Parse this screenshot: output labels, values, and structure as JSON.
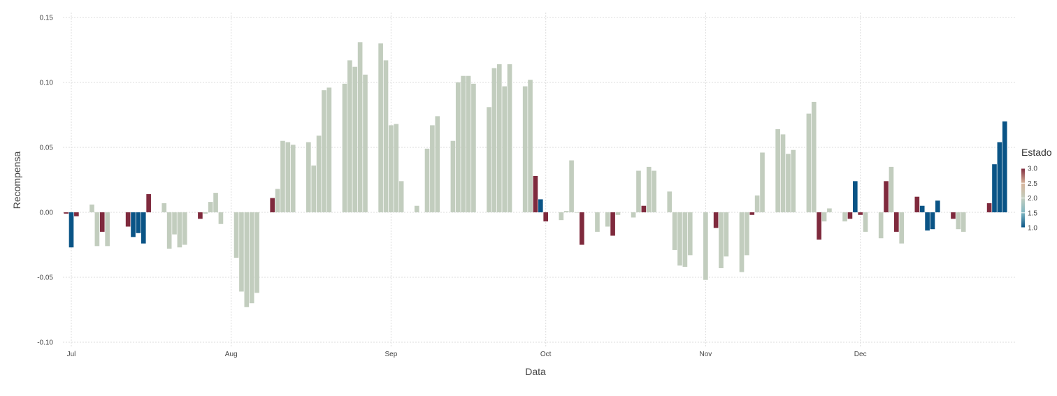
{
  "chart_data": {
    "type": "bar",
    "xlabel": "Data",
    "ylabel": "Recompensa",
    "ylim": [
      -0.1,
      0.15
    ],
    "y_ticks": [
      {
        "value": 0.15,
        "label": "0.15"
      },
      {
        "value": 0.1,
        "label": "0.10"
      },
      {
        "value": 0.05,
        "label": "0.05"
      },
      {
        "value": 0.0,
        "label": "0.00"
      },
      {
        "value": -0.05,
        "label": "-0.05"
      },
      {
        "value": -0.1,
        "label": "-0.10"
      }
    ],
    "x_ticks": [
      {
        "date": "2023-07-01",
        "label": "Jul"
      },
      {
        "date": "2023-08-01",
        "label": "Aug"
      },
      {
        "date": "2023-09-01",
        "label": "Sep"
      },
      {
        "date": "2023-10-01",
        "label": "Oct"
      },
      {
        "date": "2023-11-01",
        "label": "Nov"
      },
      {
        "date": "2023-12-01",
        "label": "Dec"
      }
    ],
    "xlim": [
      "2023-07-01",
      "2023-12-31"
    ],
    "grid": true,
    "legend": {
      "title": "Estado",
      "position": "right",
      "range": [
        1.0,
        3.0
      ],
      "ticks": [
        "3.0",
        "2.5",
        "2.0",
        "1.5",
        "1.0"
      ],
      "colors": {
        "1": "#0a5486",
        "2": "#c2cdbe",
        "3": "#7f2a3d"
      }
    },
    "points": [
      {
        "x": "2023-06-30",
        "y": -0.001,
        "state": 3
      },
      {
        "x": "2023-07-01",
        "y": -0.027,
        "state": 1
      },
      {
        "x": "2023-07-02",
        "y": -0.003,
        "state": 3
      },
      {
        "x": "2023-07-05",
        "y": 0.006,
        "state": 2
      },
      {
        "x": "2023-07-06",
        "y": -0.026,
        "state": 2
      },
      {
        "x": "2023-07-07",
        "y": -0.015,
        "state": 3
      },
      {
        "x": "2023-07-08",
        "y": -0.026,
        "state": 2
      },
      {
        "x": "2023-07-12",
        "y": -0.011,
        "state": 3
      },
      {
        "x": "2023-07-13",
        "y": -0.019,
        "state": 1
      },
      {
        "x": "2023-07-14",
        "y": -0.016,
        "state": 1
      },
      {
        "x": "2023-07-15",
        "y": -0.024,
        "state": 1
      },
      {
        "x": "2023-07-16",
        "y": 0.014,
        "state": 3
      },
      {
        "x": "2023-07-19",
        "y": 0.007,
        "state": 2
      },
      {
        "x": "2023-07-20",
        "y": -0.028,
        "state": 2
      },
      {
        "x": "2023-07-21",
        "y": -0.017,
        "state": 2
      },
      {
        "x": "2023-07-22",
        "y": -0.027,
        "state": 2
      },
      {
        "x": "2023-07-23",
        "y": -0.025,
        "state": 2
      },
      {
        "x": "2023-07-26",
        "y": -0.005,
        "state": 3
      },
      {
        "x": "2023-07-27",
        "y": -0.001,
        "state": 2
      },
      {
        "x": "2023-07-28",
        "y": 0.008,
        "state": 2
      },
      {
        "x": "2023-07-29",
        "y": 0.015,
        "state": 2
      },
      {
        "x": "2023-07-30",
        "y": -0.009,
        "state": 2
      },
      {
        "x": "2023-08-02",
        "y": -0.035,
        "state": 2
      },
      {
        "x": "2023-08-03",
        "y": -0.061,
        "state": 2
      },
      {
        "x": "2023-08-04",
        "y": -0.073,
        "state": 2
      },
      {
        "x": "2023-08-05",
        "y": -0.07,
        "state": 2
      },
      {
        "x": "2023-08-06",
        "y": -0.062,
        "state": 2
      },
      {
        "x": "2023-08-09",
        "y": 0.011,
        "state": 3
      },
      {
        "x": "2023-08-10",
        "y": 0.018,
        "state": 2
      },
      {
        "x": "2023-08-11",
        "y": 0.055,
        "state": 2
      },
      {
        "x": "2023-08-12",
        "y": 0.054,
        "state": 2
      },
      {
        "x": "2023-08-13",
        "y": 0.052,
        "state": 2
      },
      {
        "x": "2023-08-16",
        "y": 0.054,
        "state": 2
      },
      {
        "x": "2023-08-17",
        "y": 0.036,
        "state": 2
      },
      {
        "x": "2023-08-18",
        "y": 0.059,
        "state": 2
      },
      {
        "x": "2023-08-19",
        "y": 0.094,
        "state": 2
      },
      {
        "x": "2023-08-20",
        "y": 0.096,
        "state": 2
      },
      {
        "x": "2023-08-23",
        "y": 0.099,
        "state": 2
      },
      {
        "x": "2023-08-24",
        "y": 0.117,
        "state": 2
      },
      {
        "x": "2023-08-25",
        "y": 0.112,
        "state": 2
      },
      {
        "x": "2023-08-26",
        "y": 0.131,
        "state": 2
      },
      {
        "x": "2023-08-27",
        "y": 0.106,
        "state": 2
      },
      {
        "x": "2023-08-30",
        "y": 0.13,
        "state": 2
      },
      {
        "x": "2023-08-31",
        "y": 0.117,
        "state": 2
      },
      {
        "x": "2023-09-01",
        "y": 0.067,
        "state": 2
      },
      {
        "x": "2023-09-02",
        "y": 0.068,
        "state": 2
      },
      {
        "x": "2023-09-03",
        "y": 0.024,
        "state": 2
      },
      {
        "x": "2023-09-06",
        "y": 0.005,
        "state": 2
      },
      {
        "x": "2023-09-08",
        "y": 0.049,
        "state": 2
      },
      {
        "x": "2023-09-09",
        "y": 0.067,
        "state": 2
      },
      {
        "x": "2023-09-10",
        "y": 0.074,
        "state": 2
      },
      {
        "x": "2023-09-13",
        "y": 0.055,
        "state": 2
      },
      {
        "x": "2023-09-14",
        "y": 0.1,
        "state": 2
      },
      {
        "x": "2023-09-15",
        "y": 0.105,
        "state": 2
      },
      {
        "x": "2023-09-16",
        "y": 0.105,
        "state": 2
      },
      {
        "x": "2023-09-17",
        "y": 0.099,
        "state": 2
      },
      {
        "x": "2023-09-20",
        "y": 0.081,
        "state": 2
      },
      {
        "x": "2023-09-21",
        "y": 0.111,
        "state": 2
      },
      {
        "x": "2023-09-22",
        "y": 0.114,
        "state": 2
      },
      {
        "x": "2023-09-23",
        "y": 0.097,
        "state": 2
      },
      {
        "x": "2023-09-24",
        "y": 0.114,
        "state": 2
      },
      {
        "x": "2023-09-27",
        "y": 0.097,
        "state": 2
      },
      {
        "x": "2023-09-28",
        "y": 0.102,
        "state": 2
      },
      {
        "x": "2023-09-29",
        "y": 0.028,
        "state": 3
      },
      {
        "x": "2023-09-30",
        "y": 0.01,
        "state": 1
      },
      {
        "x": "2023-10-01",
        "y": -0.007,
        "state": 3
      },
      {
        "x": "2023-10-04",
        "y": -0.006,
        "state": 2
      },
      {
        "x": "2023-10-05",
        "y": 0.001,
        "state": 2
      },
      {
        "x": "2023-10-06",
        "y": 0.04,
        "state": 2
      },
      {
        "x": "2023-10-07",
        "y": 0.0,
        "state": 2
      },
      {
        "x": "2023-10-08",
        "y": -0.025,
        "state": 3
      },
      {
        "x": "2023-10-11",
        "y": -0.015,
        "state": 2
      },
      {
        "x": "2023-10-13",
        "y": -0.011,
        "state": 2
      },
      {
        "x": "2023-10-14",
        "y": -0.018,
        "state": 3
      },
      {
        "x": "2023-10-15",
        "y": -0.002,
        "state": 2
      },
      {
        "x": "2023-10-18",
        "y": -0.004,
        "state": 2
      },
      {
        "x": "2023-10-19",
        "y": 0.032,
        "state": 2
      },
      {
        "x": "2023-10-20",
        "y": 0.005,
        "state": 3
      },
      {
        "x": "2023-10-21",
        "y": 0.035,
        "state": 2
      },
      {
        "x": "2023-10-22",
        "y": 0.032,
        "state": 2
      },
      {
        "x": "2023-10-25",
        "y": 0.016,
        "state": 2
      },
      {
        "x": "2023-10-26",
        "y": -0.029,
        "state": 2
      },
      {
        "x": "2023-10-27",
        "y": -0.041,
        "state": 2
      },
      {
        "x": "2023-10-28",
        "y": -0.042,
        "state": 2
      },
      {
        "x": "2023-10-29",
        "y": -0.033,
        "state": 2
      },
      {
        "x": "2023-11-01",
        "y": -0.052,
        "state": 2
      },
      {
        "x": "2023-11-03",
        "y": -0.012,
        "state": 3
      },
      {
        "x": "2023-11-04",
        "y": -0.043,
        "state": 2
      },
      {
        "x": "2023-11-05",
        "y": -0.034,
        "state": 2
      },
      {
        "x": "2023-11-08",
        "y": -0.046,
        "state": 2
      },
      {
        "x": "2023-11-09",
        "y": -0.033,
        "state": 2
      },
      {
        "x": "2023-11-10",
        "y": -0.002,
        "state": 3
      },
      {
        "x": "2023-11-11",
        "y": 0.013,
        "state": 2
      },
      {
        "x": "2023-11-12",
        "y": 0.046,
        "state": 2
      },
      {
        "x": "2023-11-15",
        "y": 0.064,
        "state": 2
      },
      {
        "x": "2023-11-16",
        "y": 0.06,
        "state": 2
      },
      {
        "x": "2023-11-17",
        "y": 0.045,
        "state": 2
      },
      {
        "x": "2023-11-18",
        "y": 0.048,
        "state": 2
      },
      {
        "x": "2023-11-21",
        "y": 0.076,
        "state": 2
      },
      {
        "x": "2023-11-22",
        "y": 0.085,
        "state": 2
      },
      {
        "x": "2023-11-23",
        "y": -0.021,
        "state": 3
      },
      {
        "x": "2023-11-24",
        "y": -0.007,
        "state": 2
      },
      {
        "x": "2023-11-25",
        "y": 0.003,
        "state": 2
      },
      {
        "x": "2023-11-28",
        "y": -0.007,
        "state": 2
      },
      {
        "x": "2023-11-29",
        "y": -0.005,
        "state": 3
      },
      {
        "x": "2023-11-30",
        "y": 0.024,
        "state": 1
      },
      {
        "x": "2023-12-01",
        "y": -0.002,
        "state": 3
      },
      {
        "x": "2023-12-02",
        "y": -0.015,
        "state": 2
      },
      {
        "x": "2023-12-05",
        "y": -0.02,
        "state": 2
      },
      {
        "x": "2023-12-06",
        "y": 0.024,
        "state": 3
      },
      {
        "x": "2023-12-07",
        "y": 0.035,
        "state": 2
      },
      {
        "x": "2023-12-08",
        "y": -0.015,
        "state": 3
      },
      {
        "x": "2023-12-09",
        "y": -0.024,
        "state": 2
      },
      {
        "x": "2023-12-12",
        "y": 0.012,
        "state": 3
      },
      {
        "x": "2023-12-13",
        "y": 0.005,
        "state": 1
      },
      {
        "x": "2023-12-14",
        "y": -0.014,
        "state": 1
      },
      {
        "x": "2023-12-15",
        "y": -0.013,
        "state": 1
      },
      {
        "x": "2023-12-16",
        "y": 0.009,
        "state": 1
      },
      {
        "x": "2023-12-19",
        "y": -0.005,
        "state": 3
      },
      {
        "x": "2023-12-20",
        "y": -0.013,
        "state": 2
      },
      {
        "x": "2023-12-21",
        "y": -0.015,
        "state": 2
      },
      {
        "x": "2023-12-26",
        "y": 0.007,
        "state": 3
      },
      {
        "x": "2023-12-27",
        "y": 0.037,
        "state": 1
      },
      {
        "x": "2023-12-28",
        "y": 0.054,
        "state": 1
      },
      {
        "x": "2023-12-29",
        "y": 0.07,
        "state": 1
      }
    ]
  }
}
